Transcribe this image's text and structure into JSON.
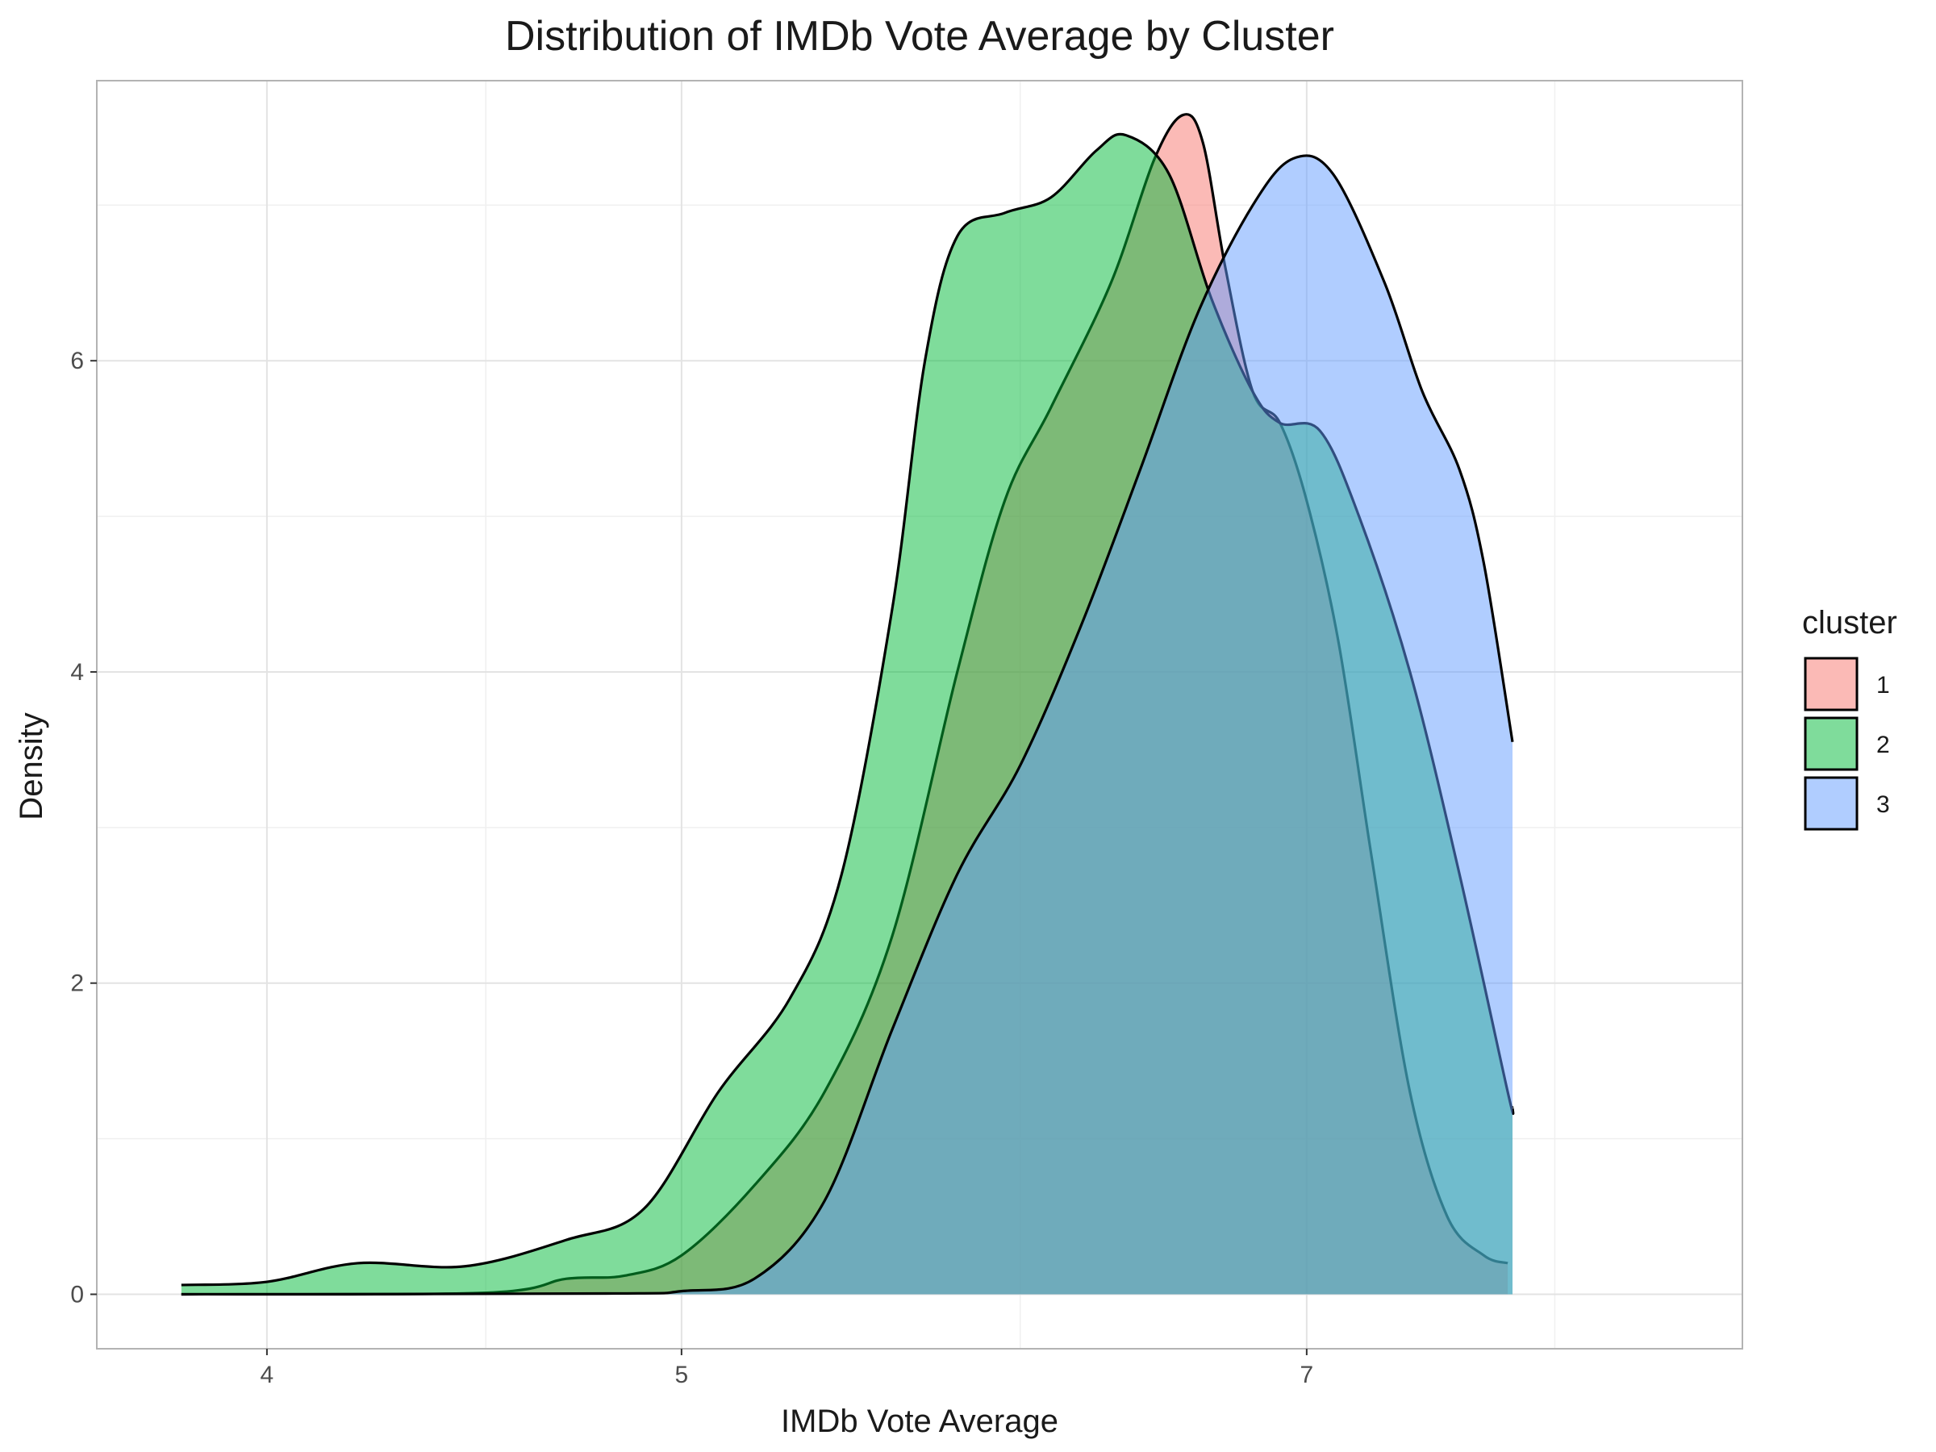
{
  "chart_data": {
    "type": "area",
    "title": "Distribution of IMDb Vote Average by Cluster",
    "xlabel": "IMDb Vote Average",
    "ylabel": "Density",
    "x_scale": "log",
    "xlim": [
      3.65,
      8.85
    ],
    "ylim": [
      -0.35,
      7.8
    ],
    "x_ticks": [
      4,
      5,
      7
    ],
    "x_tick_labels": [
      "4",
      "5",
      "7"
    ],
    "x_minor_ticks": [
      4.5,
      6,
      8
    ],
    "y_ticks": [
      0,
      2,
      4,
      6
    ],
    "y_tick_labels": [
      "0",
      "2",
      "4",
      "6"
    ],
    "y_minor_ticks": [
      1,
      3,
      5,
      7
    ],
    "grid": true,
    "legend": {
      "title": "cluster",
      "position": "right"
    },
    "series": [
      {
        "name": "1",
        "color": "#F8766D",
        "points": [
          [
            3.82,
            0
          ],
          [
            4.5,
            0.01
          ],
          [
            4.7,
            0.1
          ],
          [
            4.85,
            0.12
          ],
          [
            5.0,
            0.25
          ],
          [
            5.2,
            0.7
          ],
          [
            5.4,
            1.3
          ],
          [
            5.6,
            2.3
          ],
          [
            5.8,
            4.0
          ],
          [
            5.95,
            5.1
          ],
          [
            6.1,
            5.7
          ],
          [
            6.3,
            6.5
          ],
          [
            6.45,
            7.3
          ],
          [
            6.55,
            7.58
          ],
          [
            6.62,
            7.4
          ],
          [
            6.7,
            6.6
          ],
          [
            6.8,
            5.8
          ],
          [
            6.9,
            5.6
          ],
          [
            7.0,
            5.1
          ],
          [
            7.12,
            4.2
          ],
          [
            7.25,
            2.8
          ],
          [
            7.4,
            1.3
          ],
          [
            7.55,
            0.5
          ],
          [
            7.7,
            0.25
          ],
          [
            7.8,
            0.2
          ]
        ]
      },
      {
        "name": "2",
        "color": "#00BA38",
        "points": [
          [
            3.82,
            0.06
          ],
          [
            4.0,
            0.08
          ],
          [
            4.2,
            0.2
          ],
          [
            4.45,
            0.18
          ],
          [
            4.7,
            0.35
          ],
          [
            4.9,
            0.55
          ],
          [
            5.1,
            1.3
          ],
          [
            5.3,
            1.9
          ],
          [
            5.45,
            2.7
          ],
          [
            5.6,
            4.4
          ],
          [
            5.7,
            6.0
          ],
          [
            5.8,
            6.8
          ],
          [
            5.95,
            6.95
          ],
          [
            6.1,
            7.05
          ],
          [
            6.25,
            7.35
          ],
          [
            6.35,
            7.45
          ],
          [
            6.5,
            7.2
          ],
          [
            6.65,
            6.4
          ],
          [
            6.8,
            5.8
          ],
          [
            6.9,
            5.6
          ],
          [
            7.05,
            5.55
          ],
          [
            7.2,
            5.0
          ],
          [
            7.4,
            4.0
          ],
          [
            7.6,
            2.7
          ],
          [
            7.8,
            1.3
          ],
          [
            7.82,
            1.2
          ]
        ]
      },
      {
        "name": "3",
        "color": "#619CFF",
        "points": [
          [
            3.82,
            0
          ],
          [
            4.8,
            0.005
          ],
          [
            5.0,
            0.02
          ],
          [
            5.2,
            0.1
          ],
          [
            5.4,
            0.6
          ],
          [
            5.6,
            1.7
          ],
          [
            5.8,
            2.7
          ],
          [
            6.0,
            3.4
          ],
          [
            6.2,
            4.3
          ],
          [
            6.4,
            5.3
          ],
          [
            6.6,
            6.3
          ],
          [
            6.8,
            7.0
          ],
          [
            6.95,
            7.3
          ],
          [
            7.1,
            7.2
          ],
          [
            7.3,
            6.5
          ],
          [
            7.45,
            5.8
          ],
          [
            7.6,
            5.3
          ],
          [
            7.7,
            4.7
          ],
          [
            7.82,
            3.55
          ]
        ]
      }
    ]
  }
}
